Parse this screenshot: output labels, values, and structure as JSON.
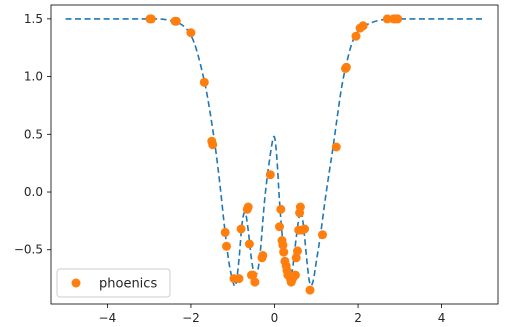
{
  "chart_data": {
    "type": "scatter",
    "title": "",
    "xlabel": "",
    "ylabel": "",
    "xlim": [
      -5.35,
      5.35
    ],
    "ylim": [
      -0.97,
      1.62
    ],
    "xticks": [
      -4,
      -2,
      0,
      2,
      4
    ],
    "xtick_labels": [
      "−4",
      "−2",
      "0",
      "2",
      "4"
    ],
    "yticks": [
      -0.5,
      0.0,
      0.5,
      1.0,
      1.5
    ],
    "ytick_labels": [
      "−0.5",
      "0.0",
      "0.5",
      "1.0",
      "1.5"
    ],
    "grid": false,
    "legend": {
      "placement": "bottom-left",
      "entries": [
        "phoenics"
      ]
    },
    "series": [
      {
        "name": "",
        "kind": "line",
        "style": "dashed",
        "color": "#1f77b4",
        "x": [
          -5.0,
          -3.5,
          -3.0,
          -2.7,
          -2.4,
          -2.2,
          -2.0,
          -1.85,
          -1.7,
          -1.6,
          -1.5,
          -1.4,
          -1.3,
          -1.2,
          -1.1,
          -1.0,
          -0.93,
          -0.85,
          -0.78,
          -0.7,
          -0.62,
          -0.55,
          -0.48,
          -0.4,
          -0.33,
          -0.25,
          -0.15,
          -0.05,
          0.0,
          0.05,
          0.12,
          0.2,
          0.28,
          0.35,
          0.42,
          0.5,
          0.57,
          0.63,
          0.7,
          0.78,
          0.85,
          0.93,
          1.0,
          1.1,
          1.2,
          1.3,
          1.4,
          1.5,
          1.6,
          1.7,
          1.85,
          2.0,
          2.2,
          2.4,
          2.7,
          3.0,
          3.5,
          5.0
        ],
        "y": [
          1.5,
          1.5,
          1.5,
          1.5,
          1.48,
          1.45,
          1.37,
          1.22,
          1.0,
          0.82,
          0.6,
          0.35,
          0.05,
          -0.3,
          -0.6,
          -0.78,
          -0.84,
          -0.6,
          -0.25,
          -0.14,
          -0.35,
          -0.6,
          -0.73,
          -0.7,
          -0.5,
          -0.1,
          0.2,
          0.45,
          0.5,
          0.35,
          -0.1,
          -0.45,
          -0.7,
          -0.78,
          -0.72,
          -0.45,
          -0.25,
          -0.12,
          -0.3,
          -0.62,
          -0.83,
          -0.78,
          -0.6,
          -0.38,
          -0.1,
          0.15,
          0.38,
          0.65,
          0.9,
          1.08,
          1.3,
          1.4,
          1.45,
          1.48,
          1.5,
          1.5,
          1.5,
          1.5
        ]
      },
      {
        "name": "phoenics",
        "kind": "scatter",
        "color": "#ff7f0e",
        "x": [
          -2.98,
          -2.95,
          -2.38,
          -2.35,
          -2.0,
          -1.68,
          -1.5,
          -1.48,
          -1.18,
          -1.15,
          -0.97,
          -0.85,
          -0.8,
          -0.65,
          -0.63,
          -0.6,
          -0.55,
          -0.52,
          -0.47,
          -0.3,
          -0.28,
          -0.1,
          0.12,
          0.15,
          0.18,
          0.2,
          0.22,
          0.25,
          0.28,
          0.3,
          0.32,
          0.35,
          0.38,
          0.4,
          0.42,
          0.45,
          0.5,
          0.52,
          0.55,
          0.58,
          0.6,
          0.62,
          0.65,
          0.72,
          0.85,
          1.15,
          1.48,
          1.7,
          1.72,
          1.95,
          2.05,
          2.12,
          2.7,
          2.85,
          2.9,
          2.95
        ],
        "y": [
          1.5,
          1.5,
          1.48,
          1.48,
          1.38,
          0.95,
          0.44,
          0.41,
          -0.35,
          -0.47,
          -0.75,
          -0.75,
          -0.32,
          -0.15,
          -0.13,
          -0.45,
          -0.72,
          -0.72,
          -0.78,
          -0.57,
          -0.55,
          0.15,
          -0.3,
          -0.15,
          -0.42,
          -0.46,
          -0.52,
          -0.6,
          -0.64,
          -0.68,
          -0.72,
          -0.72,
          -0.75,
          -0.78,
          -0.76,
          -0.74,
          -0.72,
          -0.57,
          -0.51,
          -0.33,
          -0.18,
          -0.13,
          -0.33,
          -0.32,
          -0.85,
          -0.37,
          0.39,
          1.07,
          1.08,
          1.35,
          1.42,
          1.44,
          1.5,
          1.5,
          1.5,
          1.5
        ]
      }
    ]
  }
}
